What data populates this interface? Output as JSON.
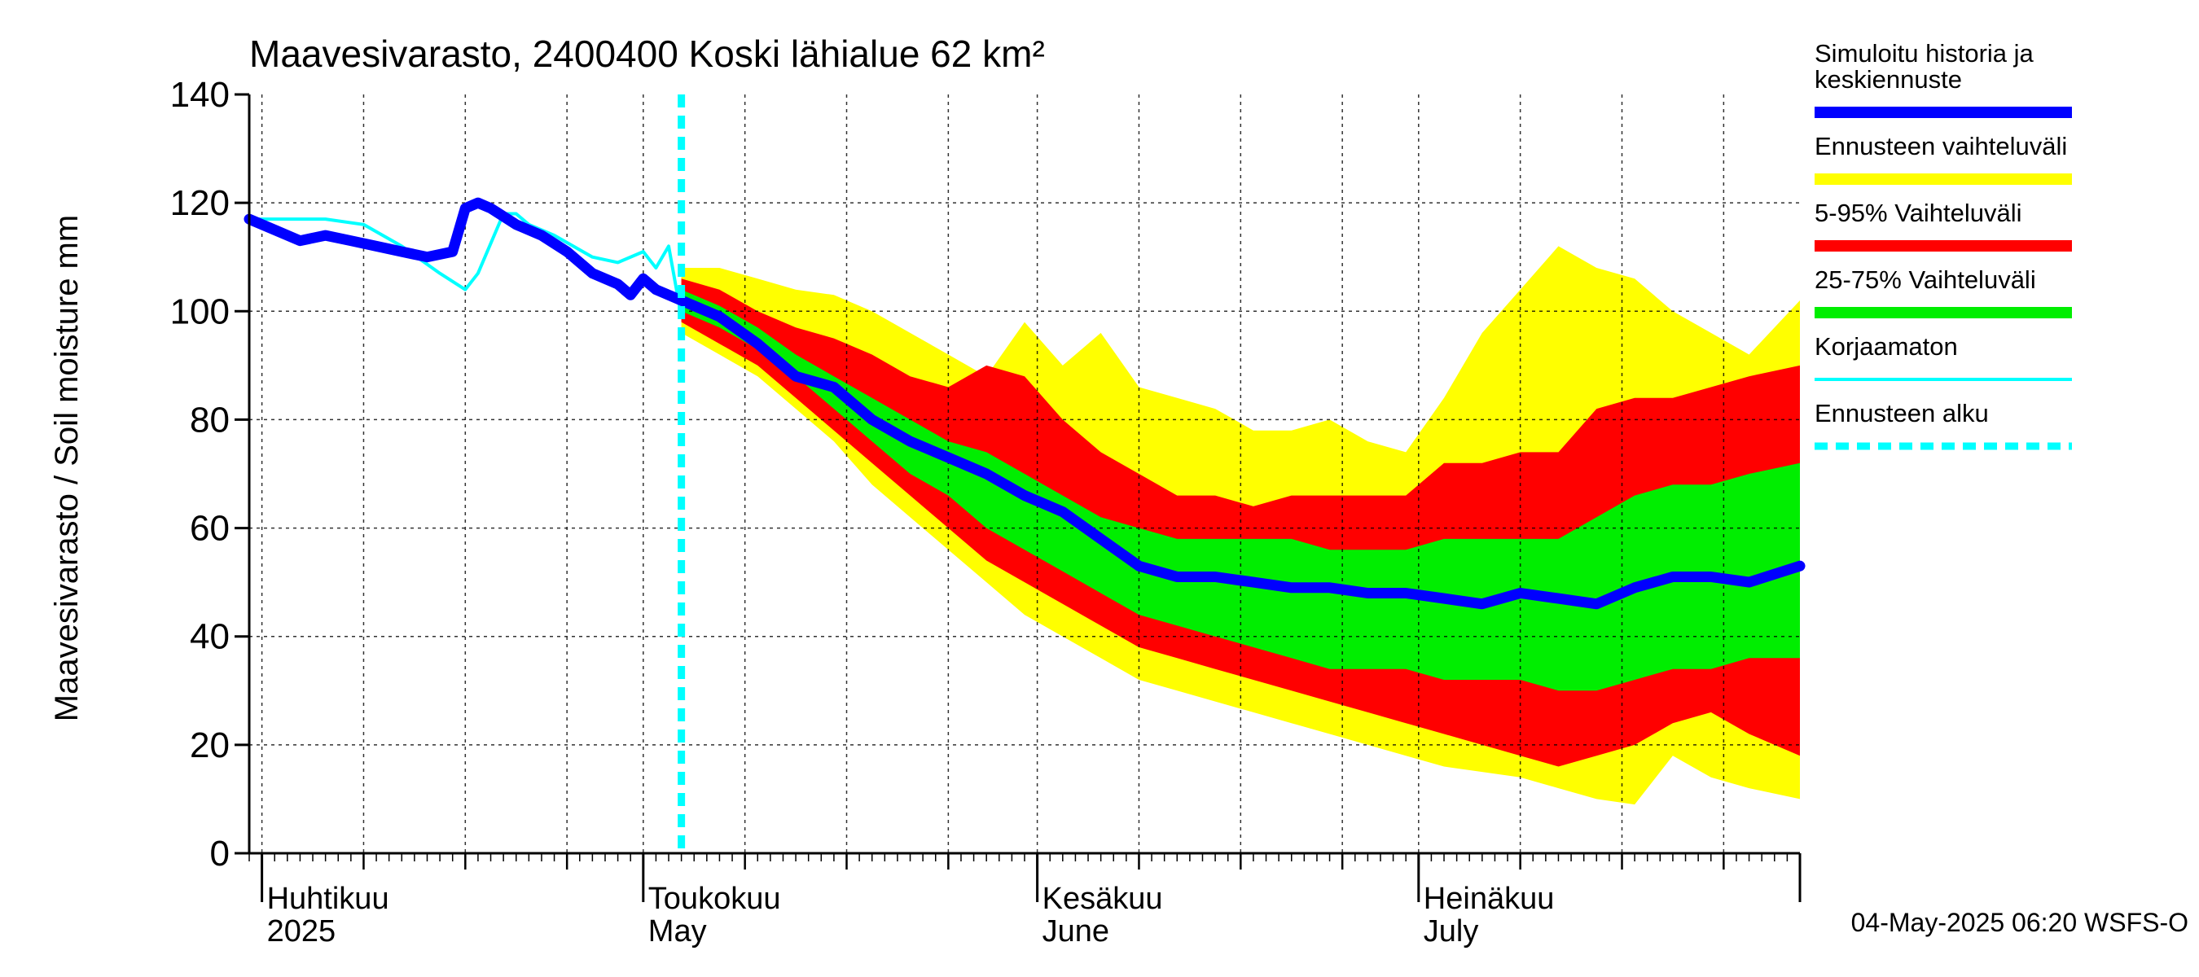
{
  "chart_data": {
    "type": "area",
    "title": "Maavesivarasto, 2400400 Koski lähialue 62 km²",
    "ylabel": "Maavesivarasto / Soil moisture   mm",
    "xlabel": "",
    "ylim": [
      0,
      140
    ],
    "yticks": [
      0,
      20,
      40,
      60,
      80,
      100,
      120,
      140
    ],
    "grid": true,
    "legend_position": "right",
    "x_domain": [
      "2025-03-31",
      "2025-07-31"
    ],
    "forecast_start": "2025-05-04",
    "month_labels": [
      {
        "date": "2025-04-01",
        "fi": "Huhtikuu",
        "en": "2025"
      },
      {
        "date": "2025-05-01",
        "fi": "Toukokuu",
        "en": "May"
      },
      {
        "date": "2025-06-01",
        "fi": "Kesäkuu",
        "en": "June"
      },
      {
        "date": "2025-07-01",
        "fi": "Heinäkuu",
        "en": "July"
      }
    ],
    "footer": "04-May-2025 06:20 WSFS-O",
    "legend": [
      {
        "label": "Simuloitu historia ja keskiennuste",
        "color": "#0000ff",
        "style": "solid"
      },
      {
        "label": "Ennusteen vaihteluväli",
        "color": "#ffff00",
        "style": "solid"
      },
      {
        "label": "5-95% Vaihteluväli",
        "color": "#ff0000",
        "style": "solid"
      },
      {
        "label": "25-75% Vaihteluväli",
        "color": "#00ee00",
        "style": "solid"
      },
      {
        "label": "Korjaamaton",
        "color": "#00ffff",
        "style": "solid"
      },
      {
        "label": "Ennusteen alku",
        "color": "#00ffff",
        "style": "dashed"
      }
    ],
    "series": [
      {
        "name": "Ennusteen vaihteluväli",
        "kind": "band",
        "color": "#ffff00",
        "x": [
          "2025-05-04",
          "2025-05-07",
          "2025-05-10",
          "2025-05-13",
          "2025-05-16",
          "2025-05-19",
          "2025-05-22",
          "2025-05-25",
          "2025-05-28",
          "2025-05-31",
          "2025-06-03",
          "2025-06-06",
          "2025-06-09",
          "2025-06-12",
          "2025-06-15",
          "2025-06-18",
          "2025-06-21",
          "2025-06-24",
          "2025-06-27",
          "2025-06-30",
          "2025-07-03",
          "2025-07-06",
          "2025-07-09",
          "2025-07-12",
          "2025-07-15",
          "2025-07-18",
          "2025-07-21",
          "2025-07-24",
          "2025-07-27",
          "2025-07-31"
        ],
        "upper": [
          108,
          108,
          106,
          104,
          103,
          100,
          96,
          92,
          88,
          98,
          90,
          96,
          86,
          84,
          82,
          78,
          78,
          80,
          76,
          74,
          84,
          96,
          104,
          112,
          108,
          106,
          100,
          96,
          92,
          102
        ],
        "lower": [
          96,
          92,
          88,
          82,
          76,
          68,
          62,
          56,
          50,
          44,
          40,
          36,
          32,
          30,
          28,
          26,
          24,
          22,
          20,
          18,
          16,
          15,
          14,
          12,
          10,
          9,
          18,
          14,
          12,
          10
        ]
      },
      {
        "name": "5-95% Vaihteluväli",
        "kind": "band",
        "color": "#ff0000",
        "x": [
          "2025-05-04",
          "2025-05-07",
          "2025-05-10",
          "2025-05-13",
          "2025-05-16",
          "2025-05-19",
          "2025-05-22",
          "2025-05-25",
          "2025-05-28",
          "2025-05-31",
          "2025-06-03",
          "2025-06-06",
          "2025-06-09",
          "2025-06-12",
          "2025-06-15",
          "2025-06-18",
          "2025-06-21",
          "2025-06-24",
          "2025-06-27",
          "2025-06-30",
          "2025-07-03",
          "2025-07-06",
          "2025-07-09",
          "2025-07-12",
          "2025-07-15",
          "2025-07-18",
          "2025-07-21",
          "2025-07-24",
          "2025-07-27",
          "2025-07-31"
        ],
        "upper": [
          106,
          104,
          100,
          97,
          95,
          92,
          88,
          86,
          90,
          88,
          80,
          74,
          70,
          66,
          66,
          64,
          66,
          66,
          66,
          66,
          72,
          72,
          74,
          74,
          82,
          84,
          84,
          86,
          88,
          90
        ],
        "lower": [
          98,
          94,
          90,
          84,
          78,
          72,
          66,
          60,
          54,
          50,
          46,
          42,
          38,
          36,
          34,
          32,
          30,
          28,
          26,
          24,
          22,
          20,
          18,
          16,
          18,
          20,
          24,
          26,
          22,
          18
        ]
      },
      {
        "name": "25-75% Vaihteluväli",
        "kind": "band",
        "color": "#00ee00",
        "x": [
          "2025-05-04",
          "2025-05-07",
          "2025-05-10",
          "2025-05-13",
          "2025-05-16",
          "2025-05-19",
          "2025-05-22",
          "2025-05-25",
          "2025-05-28",
          "2025-05-31",
          "2025-06-03",
          "2025-06-06",
          "2025-06-09",
          "2025-06-12",
          "2025-06-15",
          "2025-06-18",
          "2025-06-21",
          "2025-06-24",
          "2025-06-27",
          "2025-06-30",
          "2025-07-03",
          "2025-07-06",
          "2025-07-09",
          "2025-07-12",
          "2025-07-15",
          "2025-07-18",
          "2025-07-21",
          "2025-07-24",
          "2025-07-27",
          "2025-07-31"
        ],
        "upper": [
          104,
          101,
          97,
          92,
          88,
          84,
          80,
          76,
          74,
          70,
          66,
          62,
          60,
          58,
          58,
          58,
          58,
          56,
          56,
          56,
          58,
          58,
          58,
          58,
          62,
          66,
          68,
          68,
          70,
          72
        ],
        "lower": [
          100,
          97,
          93,
          88,
          82,
          76,
          70,
          66,
          60,
          56,
          52,
          48,
          44,
          42,
          40,
          38,
          36,
          34,
          34,
          34,
          32,
          32,
          32,
          30,
          30,
          32,
          34,
          34,
          36,
          36
        ]
      },
      {
        "name": "Korjaamaton",
        "kind": "line",
        "color": "#00ffff",
        "x": [
          "2025-03-31",
          "2025-04-03",
          "2025-04-06",
          "2025-04-09",
          "2025-04-12",
          "2025-04-15",
          "2025-04-17",
          "2025-04-18",
          "2025-04-20",
          "2025-04-21",
          "2025-04-22",
          "2025-04-24",
          "2025-04-27",
          "2025-04-29",
          "2025-05-01",
          "2025-05-02",
          "2025-05-03",
          "2025-05-04"
        ],
        "values": [
          117,
          117,
          117,
          116,
          112,
          107,
          104,
          107,
          118,
          118,
          116,
          114,
          110,
          109,
          111,
          108,
          112,
          99
        ]
      },
      {
        "name": "Simuloitu historia ja keskiennuste",
        "kind": "line",
        "color": "#0000ff",
        "x": [
          "2025-03-31",
          "2025-04-02",
          "2025-04-04",
          "2025-04-06",
          "2025-04-08",
          "2025-04-10",
          "2025-04-12",
          "2025-04-14",
          "2025-04-16",
          "2025-04-17",
          "2025-04-18",
          "2025-04-19",
          "2025-04-21",
          "2025-04-23",
          "2025-04-25",
          "2025-04-27",
          "2025-04-29",
          "2025-04-30",
          "2025-05-01",
          "2025-05-02",
          "2025-05-04",
          "2025-05-07",
          "2025-05-10",
          "2025-05-13",
          "2025-05-16",
          "2025-05-19",
          "2025-05-22",
          "2025-05-25",
          "2025-05-28",
          "2025-05-31",
          "2025-06-03",
          "2025-06-06",
          "2025-06-09",
          "2025-06-12",
          "2025-06-15",
          "2025-06-18",
          "2025-06-21",
          "2025-06-24",
          "2025-06-27",
          "2025-06-30",
          "2025-07-03",
          "2025-07-06",
          "2025-07-09",
          "2025-07-12",
          "2025-07-15",
          "2025-07-18",
          "2025-07-21",
          "2025-07-24",
          "2025-07-27",
          "2025-07-31"
        ],
        "values": [
          117,
          115,
          113,
          114,
          113,
          112,
          111,
          110,
          111,
          119,
          120,
          119,
          116,
          114,
          111,
          107,
          105,
          103,
          106,
          104,
          102,
          99,
          94,
          88,
          86,
          80,
          76,
          73,
          70,
          66,
          63,
          58,
          53,
          51,
          51,
          50,
          49,
          49,
          48,
          48,
          47,
          46,
          48,
          47,
          46,
          49,
          51,
          51,
          50,
          53
        ]
      }
    ]
  }
}
